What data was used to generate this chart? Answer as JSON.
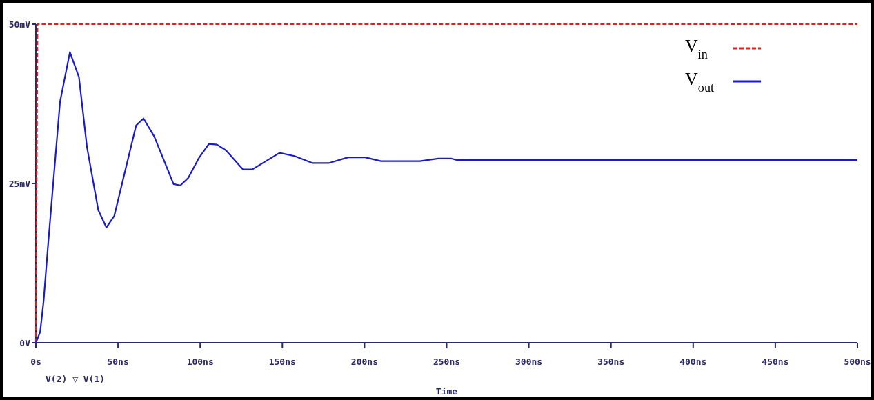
{
  "chart_data": {
    "type": "line",
    "xlabel": "Time",
    "xlim": [
      0,
      500
    ],
    "ylim": [
      0,
      50
    ],
    "xticks": [
      {
        "value": 0,
        "label": "0s"
      },
      {
        "value": 50,
        "label": "50ns"
      },
      {
        "value": 100,
        "label": "100ns"
      },
      {
        "value": 150,
        "label": "150ns"
      },
      {
        "value": 200,
        "label": "200ns"
      },
      {
        "value": 250,
        "label": "250ns"
      },
      {
        "value": 300,
        "label": "300ns"
      },
      {
        "value": 350,
        "label": "350ns"
      },
      {
        "value": 400,
        "label": "400ns"
      },
      {
        "value": 450,
        "label": "450ns"
      },
      {
        "value": 500,
        "label": "500ns"
      }
    ],
    "yticks": [
      {
        "value": 0,
        "label": "0V"
      },
      {
        "value": 25,
        "label": "25mV"
      },
      {
        "value": 50,
        "label": "50mV"
      }
    ],
    "legend": "top right",
    "grid": false,
    "marker": "none",
    "annotations": [
      "V(2) ▽ V(1)"
    ],
    "series": [
      {
        "name": "V$_{in}$",
        "color": "#e02020",
        "line_style": "dashed",
        "x": [
          0,
          1,
          500
        ],
        "values": [
          0,
          50,
          50
        ]
      },
      {
        "name": "V$_{out}$",
        "color": "#1a1acc",
        "line_style": "solid",
        "x": [
          0,
          2.6,
          4.7,
          7.5,
          11,
          14.7,
          20.7,
          26.2,
          31.1,
          38,
          42.9,
          47.7,
          61,
          65.5,
          72,
          83.8,
          88,
          92.8,
          99,
          105.3,
          110.2,
          115.7,
          126.1,
          131.7,
          148.3,
          157.4,
          168.5,
          178.2,
          190,
          200.4,
          210,
          233.7,
          244.8,
          253,
          256,
          500
        ],
        "values": [
          0,
          1.7,
          6.5,
          15.6,
          26.4,
          37.8,
          45.6,
          41.7,
          30.7,
          20.8,
          18.1,
          19.9,
          34.1,
          35.2,
          32.4,
          24.9,
          24.7,
          25.9,
          28.9,
          31.2,
          31.1,
          30.2,
          27.2,
          27.2,
          29.8,
          29.3,
          28.2,
          28.2,
          29.1,
          29.1,
          28.5,
          28.5,
          28.9,
          28.9,
          28.7,
          28.7
        ]
      }
    ]
  }
}
